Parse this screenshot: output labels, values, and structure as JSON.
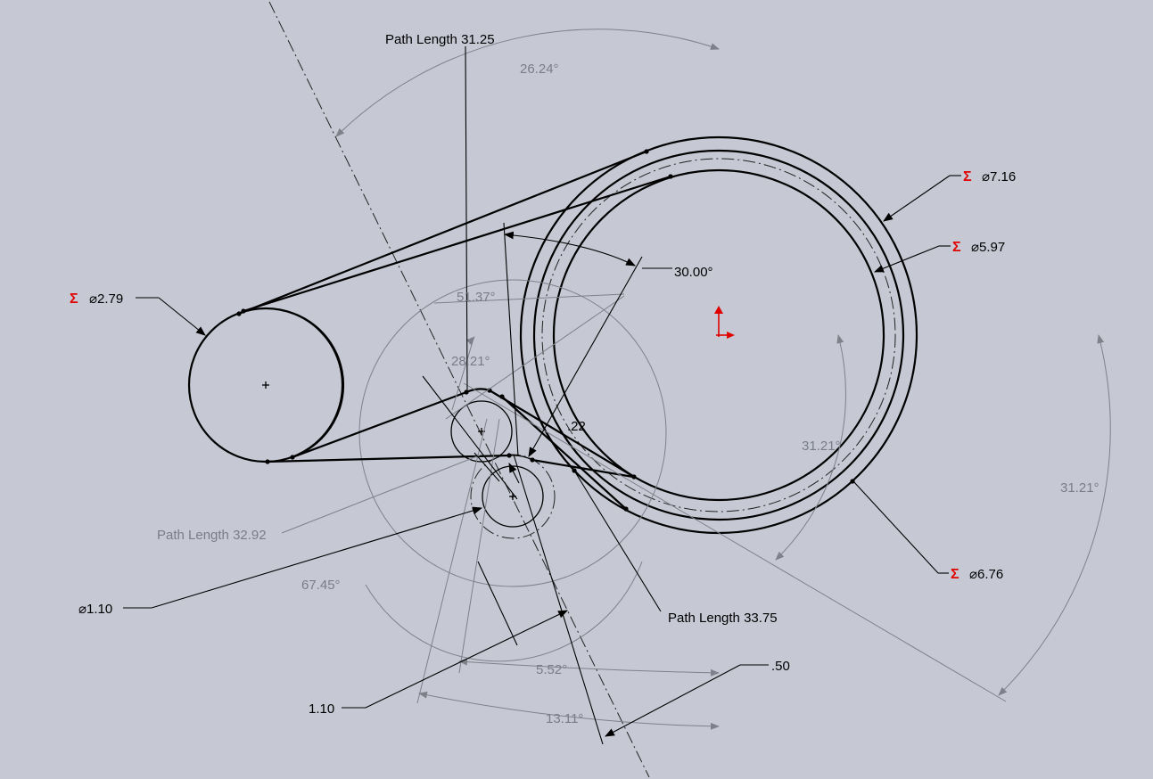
{
  "sketch": {
    "background": "#c6c9d4",
    "path_lengths": {
      "top": "Path Length 31.25",
      "left_gray": "Path Length 32.92",
      "bottom": "Path Length 33.75"
    },
    "angles": {
      "a_26": "26.24°",
      "a_30": "30.00°",
      "a_51": "51.37°",
      "a_28": "28.21°",
      "a_31_inner": "31.21°",
      "a_31_outer": "31.21°",
      "a_67": "67.45°",
      "a_5": "5.52°",
      "a_13": "13.11°"
    },
    "diameters": {
      "d_7_16": "⌀7.16",
      "d_5_97": "⌀5.97",
      "d_6_76": "⌀6.76",
      "d_2_79": "⌀2.79",
      "d_1_10": "⌀1.10"
    },
    "linear": {
      "l_022": ".22",
      "l_050": ".50",
      "l_110": "1.10"
    },
    "sigma_symbol": "Σ",
    "colors": {
      "driven_dim": "#7a7d86",
      "driving_dim": "#000000",
      "sigma": "#e00000",
      "origin": "#e00000"
    }
  }
}
